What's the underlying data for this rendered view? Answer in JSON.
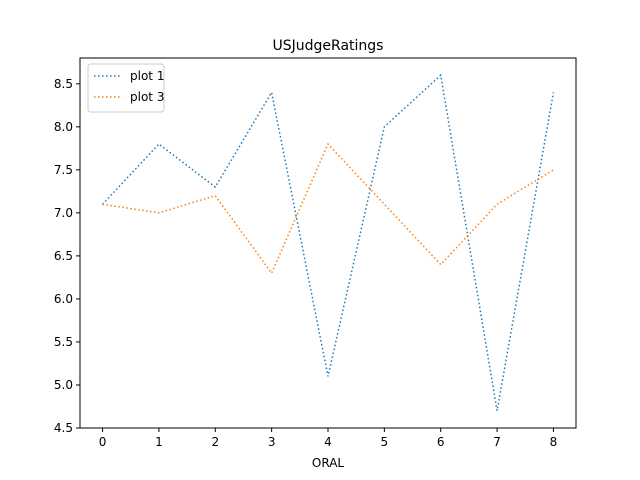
{
  "chart_data": {
    "type": "line",
    "title": "USJudgeRatings",
    "xlabel": "ORAL",
    "ylabel": "",
    "x": [
      0,
      1,
      2,
      3,
      4,
      5,
      6,
      7,
      8
    ],
    "xlim": [
      -0.4,
      8.4
    ],
    "ylim": [
      4.5,
      8.8
    ],
    "xticks": [
      "0",
      "1",
      "2",
      "3",
      "4",
      "5",
      "6",
      "7",
      "8"
    ],
    "yticks": [
      "4.5",
      "5.0",
      "5.5",
      "6.0",
      "6.5",
      "7.0",
      "7.5",
      "8.0",
      "8.5"
    ],
    "grid": false,
    "legend_position": "top-left",
    "series": [
      {
        "name": "plot 1",
        "color": "#1f77b4",
        "style": "dotted",
        "values": [
          7.1,
          7.8,
          7.3,
          8.4,
          5.1,
          8.0,
          8.6,
          4.7,
          8.4
        ]
      },
      {
        "name": "plot 3",
        "color": "#ff7f0e",
        "style": "dotted",
        "values": [
          7.1,
          7.0,
          7.2,
          6.3,
          7.8,
          7.1,
          6.4,
          7.1,
          7.5
        ]
      }
    ]
  }
}
